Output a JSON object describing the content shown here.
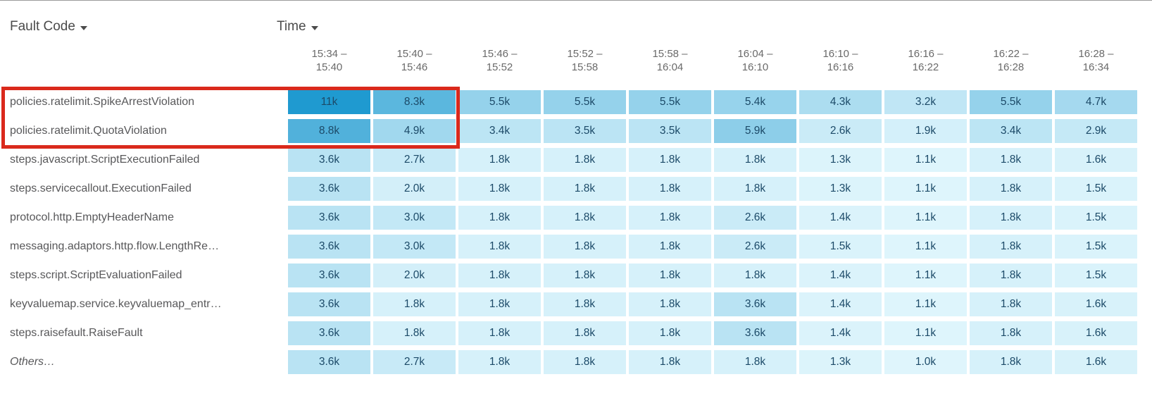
{
  "controls": {
    "fault_code_label": "Fault Code",
    "time_label": "Time"
  },
  "heatmap": {
    "time_buckets": [
      {
        "line1": "15:34 –",
        "line2": "15:40"
      },
      {
        "line1": "15:40 –",
        "line2": "15:46"
      },
      {
        "line1": "15:46 –",
        "line2": "15:52"
      },
      {
        "line1": "15:52 –",
        "line2": "15:58"
      },
      {
        "line1": "15:58 –",
        "line2": "16:04"
      },
      {
        "line1": "16:04 –",
        "line2": "16:10"
      },
      {
        "line1": "16:10 –",
        "line2": "16:16"
      },
      {
        "line1": "16:16 –",
        "line2": "16:22"
      },
      {
        "line1": "16:22 –",
        "line2": "16:28"
      },
      {
        "line1": "16:28 –",
        "line2": "16:34"
      }
    ],
    "rows": [
      {
        "label": "policies.ratelimit.SpikeArrestViolation",
        "italic": false,
        "values": [
          "11k",
          "8.3k",
          "5.5k",
          "5.5k",
          "5.5k",
          "5.4k",
          "4.3k",
          "3.2k",
          "5.5k",
          "4.7k"
        ]
      },
      {
        "label": "policies.ratelimit.QuotaViolation",
        "italic": false,
        "values": [
          "8.8k",
          "4.9k",
          "3.4k",
          "3.5k",
          "3.5k",
          "5.9k",
          "2.6k",
          "1.9k",
          "3.4k",
          "2.9k"
        ]
      },
      {
        "label": "steps.javascript.ScriptExecutionFailed",
        "italic": false,
        "values": [
          "3.6k",
          "2.7k",
          "1.8k",
          "1.8k",
          "1.8k",
          "1.8k",
          "1.3k",
          "1.1k",
          "1.8k",
          "1.6k"
        ]
      },
      {
        "label": "steps.servicecallout.ExecutionFailed",
        "italic": false,
        "values": [
          "3.6k",
          "2.0k",
          "1.8k",
          "1.8k",
          "1.8k",
          "1.8k",
          "1.3k",
          "1.1k",
          "1.8k",
          "1.5k"
        ]
      },
      {
        "label": "protocol.http.EmptyHeaderName",
        "italic": false,
        "values": [
          "3.6k",
          "3.0k",
          "1.8k",
          "1.8k",
          "1.8k",
          "2.6k",
          "1.4k",
          "1.1k",
          "1.8k",
          "1.5k"
        ]
      },
      {
        "label": "messaging.adaptors.http.flow.LengthRe…",
        "italic": false,
        "values": [
          "3.6k",
          "3.0k",
          "1.8k",
          "1.8k",
          "1.8k",
          "2.6k",
          "1.5k",
          "1.1k",
          "1.8k",
          "1.5k"
        ]
      },
      {
        "label": "steps.script.ScriptEvaluationFailed",
        "italic": false,
        "values": [
          "3.6k",
          "2.0k",
          "1.8k",
          "1.8k",
          "1.8k",
          "1.8k",
          "1.4k",
          "1.1k",
          "1.8k",
          "1.5k"
        ]
      },
      {
        "label": "keyvaluemap.service.keyvaluemap_entr…",
        "italic": false,
        "values": [
          "3.6k",
          "1.8k",
          "1.8k",
          "1.8k",
          "1.8k",
          "3.6k",
          "1.4k",
          "1.1k",
          "1.8k",
          "1.6k"
        ]
      },
      {
        "label": "steps.raisefault.RaiseFault",
        "italic": false,
        "values": [
          "3.6k",
          "1.8k",
          "1.8k",
          "1.8k",
          "1.8k",
          "3.6k",
          "1.4k",
          "1.1k",
          "1.8k",
          "1.6k"
        ]
      },
      {
        "label": "Others…",
        "italic": true,
        "values": [
          "3.6k",
          "2.7k",
          "1.8k",
          "1.8k",
          "1.8k",
          "1.8k",
          "1.3k",
          "1.0k",
          "1.8k",
          "1.6k"
        ]
      }
    ]
  },
  "annotation": {
    "description": "red highlight box around the first two fault code rows for the first two time buckets",
    "color": "#da291c"
  },
  "colors": {
    "cell_text": "#1c4a68",
    "row_label_text": "#58585a",
    "column_header_text": "#6a6a6a",
    "sort_header_text": "#4b4b4b"
  },
  "chart_data": {
    "type": "heatmap",
    "title": "",
    "row_header": "Fault Code",
    "col_header": "Time",
    "x_categories": [
      "15:34 – 15:40",
      "15:40 – 15:46",
      "15:46 – 15:52",
      "15:52 – 15:58",
      "15:58 – 16:04",
      "16:04 – 16:10",
      "16:10 – 16:16",
      "16:16 – 16:22",
      "16:22 – 16:28",
      "16:28 – 16:34"
    ],
    "y_categories": [
      "policies.ratelimit.SpikeArrestViolation",
      "policies.ratelimit.QuotaViolation",
      "steps.javascript.ScriptExecutionFailed",
      "steps.servicecallout.ExecutionFailed",
      "protocol.http.EmptyHeaderName",
      "messaging.adaptors.http.flow.LengthRe…",
      "steps.script.ScriptEvaluationFailed",
      "keyvaluemap.service.keyvaluemap_entr…",
      "steps.raisefault.RaiseFault",
      "Others…"
    ],
    "values_unit": "events, k = thousands",
    "series": [
      {
        "name": "policies.ratelimit.SpikeArrestViolation",
        "values_k": [
          11,
          8.3,
          5.5,
          5.5,
          5.5,
          5.4,
          4.3,
          3.2,
          5.5,
          4.7
        ]
      },
      {
        "name": "policies.ratelimit.QuotaViolation",
        "values_k": [
          8.8,
          4.9,
          3.4,
          3.5,
          3.5,
          5.9,
          2.6,
          1.9,
          3.4,
          2.9
        ]
      },
      {
        "name": "steps.javascript.ScriptExecutionFailed",
        "values_k": [
          3.6,
          2.7,
          1.8,
          1.8,
          1.8,
          1.8,
          1.3,
          1.1,
          1.8,
          1.6
        ]
      },
      {
        "name": "steps.servicecallout.ExecutionFailed",
        "values_k": [
          3.6,
          2.0,
          1.8,
          1.8,
          1.8,
          1.8,
          1.3,
          1.1,
          1.8,
          1.5
        ]
      },
      {
        "name": "protocol.http.EmptyHeaderName",
        "values_k": [
          3.6,
          3.0,
          1.8,
          1.8,
          1.8,
          2.6,
          1.4,
          1.1,
          1.8,
          1.5
        ]
      },
      {
        "name": "messaging.adaptors.http.flow.LengthRe…",
        "values_k": [
          3.6,
          3.0,
          1.8,
          1.8,
          1.8,
          2.6,
          1.5,
          1.1,
          1.8,
          1.5
        ]
      },
      {
        "name": "steps.script.ScriptEvaluationFailed",
        "values_k": [
          3.6,
          2.0,
          1.8,
          1.8,
          1.8,
          1.8,
          1.4,
          1.1,
          1.8,
          1.5
        ]
      },
      {
        "name": "keyvaluemap.service.keyvaluemap_entr…",
        "values_k": [
          3.6,
          1.8,
          1.8,
          1.8,
          1.8,
          3.6,
          1.4,
          1.1,
          1.8,
          1.6
        ]
      },
      {
        "name": "steps.raisefault.RaiseFault",
        "values_k": [
          3.6,
          1.8,
          1.8,
          1.8,
          1.8,
          3.6,
          1.4,
          1.1,
          1.8,
          1.6
        ]
      },
      {
        "name": "Others…",
        "values_k": [
          3.6,
          2.7,
          1.8,
          1.8,
          1.8,
          1.8,
          1.3,
          1.0,
          1.8,
          1.6
        ]
      }
    ],
    "color_scale": {
      "min_value_k": 1.0,
      "max_value_k": 11,
      "min_color": "#dff5fc",
      "max_color": "#1f9ad0",
      "gamma": 1.2
    },
    "legend": "none",
    "grid": "cells separated by white gaps",
    "annotation": "red rectangle highlights rows 1–2 across label column and time buckets 15:34–15:40 and 15:40–15:46"
  }
}
